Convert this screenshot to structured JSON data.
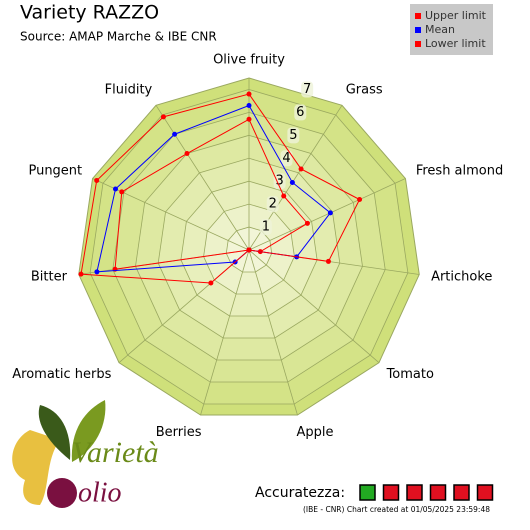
{
  "chart_data": {
    "type": "radar",
    "title": "Variety RAZZO",
    "subtitle": "Source: AMAP Marche & IBE CNR",
    "categories": [
      "Olive fruity",
      "Grass",
      "Fresh almond",
      "Artichoke",
      "Tomato",
      "Apple",
      "Berries",
      "Aromatic herbs",
      "Bitter",
      "Pungent",
      "Fluidity"
    ],
    "series": [
      {
        "name": "Upper limit",
        "color": "#ff0000",
        "values": [
          6.8,
          4.2,
          5.3,
          3.5,
          0,
          0,
          0,
          2.2,
          7.4,
          7.3,
          6.9
        ]
      },
      {
        "name": "Mean",
        "color": "#0000ff",
        "values": [
          6.3,
          3.5,
          3.9,
          2.1,
          0,
          0,
          0,
          0.8,
          6.7,
          6.4,
          6.0
        ]
      },
      {
        "name": "Lower limit",
        "color": "#ff0000",
        "values": [
          5.7,
          2.8,
          2.8,
          0.5,
          0,
          0,
          0,
          0,
          5.9,
          6.1,
          5.0
        ]
      }
    ],
    "rlim": [
      0,
      7.5
    ],
    "rticks": [
      1,
      2,
      3,
      4,
      5,
      6,
      7
    ],
    "legend": "top-right"
  },
  "accuracy": {
    "label": "Accuratezza:",
    "colors": [
      "#22aa22",
      "#e01020",
      "#e01020",
      "#e01020",
      "#e01020",
      "#e01020"
    ]
  },
  "footer": "(IBE - CNR) Chart created at 01/05/2025 23:59:48",
  "logo": {
    "line1": "Varietà",
    "line2": "olio"
  }
}
